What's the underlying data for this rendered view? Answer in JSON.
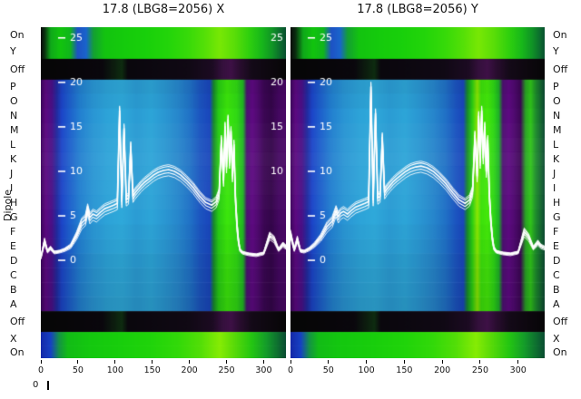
{
  "figure": {
    "dipole_label": "Dipole",
    "corner_label": "0",
    "rows": [
      {
        "label": "On",
        "band": "bright_top",
        "h": 18
      },
      {
        "label": "Y",
        "band": "bright_top",
        "h": 17
      },
      {
        "label": "Off",
        "band": "dark",
        "h": 23
      },
      {
        "label": "P",
        "band": "body",
        "h": 16
      },
      {
        "label": "O",
        "band": "body",
        "h": 16
      },
      {
        "label": "N",
        "band": "body",
        "h": 16
      },
      {
        "label": "M",
        "band": "body",
        "h": 16
      },
      {
        "label": "L",
        "band": "body",
        "h": 16
      },
      {
        "label": "K",
        "band": "body",
        "h": 16
      },
      {
        "label": "J",
        "band": "body",
        "h": 16
      },
      {
        "label": "I",
        "band": "body",
        "h": 16
      },
      {
        "label": "H",
        "band": "body",
        "h": 16
      },
      {
        "label": "G",
        "band": "body",
        "h": 16
      },
      {
        "label": "F",
        "band": "body",
        "h": 16
      },
      {
        "label": "E",
        "band": "body",
        "h": 16
      },
      {
        "label": "D",
        "band": "body",
        "h": 16
      },
      {
        "label": "C",
        "band": "body",
        "h": 16
      },
      {
        "label": "B",
        "band": "body",
        "h": 16
      },
      {
        "label": "A",
        "band": "body",
        "h": 16
      },
      {
        "label": "Off",
        "band": "dark",
        "h": 23
      },
      {
        "label": "X",
        "band": "bright_bottom",
        "h": 15
      },
      {
        "label": "On",
        "band": "bright_bottom",
        "h": 14
      }
    ]
  },
  "chart_data": [
    {
      "type": "heatmap",
      "title": "17.8 (LBG8=2056) X",
      "x_ticks": [
        0,
        50,
        100,
        150,
        200,
        250,
        300
      ],
      "x_range": [
        0,
        330
      ],
      "y_ticks": [
        25,
        20,
        15,
        10,
        5,
        0
      ],
      "right_y_ticks": [
        25,
        20,
        15,
        10
      ],
      "y_domain": [
        -11,
        26.2
      ],
      "legend": "white overlaid traces = loss profile; background heatmap = monitor intensity per dipole row",
      "gradients": {
        "bright_top": [
          [
            0.0,
            "#0b0b0b"
          ],
          [
            0.015,
            "#0a2e10"
          ],
          [
            0.04,
            "#0fa81a"
          ],
          [
            0.08,
            "#12c40e"
          ],
          [
            0.12,
            "#10b61c"
          ],
          [
            0.15,
            "#1e52c4"
          ],
          [
            0.185,
            "#1a64cc"
          ],
          [
            0.215,
            "#14a032"
          ],
          [
            0.26,
            "#13c310"
          ],
          [
            0.34,
            "#15cb0c"
          ],
          [
            0.43,
            "#19d00b"
          ],
          [
            0.52,
            "#23d50a"
          ],
          [
            0.6,
            "#37da09"
          ],
          [
            0.67,
            "#55e007"
          ],
          [
            0.73,
            "#78e805"
          ],
          [
            0.79,
            "#5ade08"
          ],
          [
            0.85,
            "#2fd00e"
          ],
          [
            0.9,
            "#18b81a"
          ],
          [
            0.945,
            "#109426"
          ],
          [
            0.975,
            "#0c6e2e"
          ],
          [
            1.0,
            "#0a5030"
          ]
        ],
        "dark": [
          [
            0.0,
            "#060606"
          ],
          [
            0.25,
            "#0a070d"
          ],
          [
            0.33,
            "#0e2c10"
          ],
          [
            0.355,
            "#0a070d"
          ],
          [
            0.6,
            "#100914"
          ],
          [
            0.7,
            "#1c0b22"
          ],
          [
            0.74,
            "#34103c"
          ],
          [
            0.775,
            "#3e1146"
          ],
          [
            0.81,
            "#2a0d30"
          ],
          [
            0.86,
            "#140a18"
          ],
          [
            1.0,
            "#070607"
          ]
        ],
        "body": [
          [
            0.0,
            "#3f0660"
          ],
          [
            0.02,
            "#5c0a80"
          ],
          [
            0.045,
            "#4a1188"
          ],
          [
            0.065,
            "#232a9e"
          ],
          [
            0.085,
            "#1c45c8"
          ],
          [
            0.12,
            "#1e62cc"
          ],
          [
            0.16,
            "#2380d0"
          ],
          [
            0.21,
            "#2a95d4"
          ],
          [
            0.27,
            "#2da3d8"
          ],
          [
            0.33,
            "#2fa9da"
          ],
          [
            0.39,
            "#2b9cd4"
          ],
          [
            0.45,
            "#2da5d8"
          ],
          [
            0.51,
            "#2a96d2"
          ],
          [
            0.56,
            "#2787cc"
          ],
          [
            0.61,
            "#2071c6"
          ],
          [
            0.65,
            "#1c55c0"
          ],
          [
            0.69,
            "#1a46bc"
          ],
          [
            0.705,
            "#18882e"
          ],
          [
            0.725,
            "#28cc14"
          ],
          [
            0.76,
            "#3ce60c"
          ],
          [
            0.8,
            "#30d814"
          ],
          [
            0.825,
            "#20b424"
          ],
          [
            0.84,
            "#4c1270"
          ],
          [
            0.862,
            "#5e0a82"
          ],
          [
            0.885,
            "#500a70"
          ],
          [
            0.91,
            "#3c0754"
          ],
          [
            0.94,
            "#34064a"
          ],
          [
            0.97,
            "#440860"
          ],
          [
            1.0,
            "#4a0866"
          ]
        ],
        "bright_bottom": [
          [
            0.0,
            "#1428a8"
          ],
          [
            0.04,
            "#1740c4"
          ],
          [
            0.075,
            "#149444"
          ],
          [
            0.11,
            "#12bc16"
          ],
          [
            0.2,
            "#14c80f"
          ],
          [
            0.32,
            "#18ce0c"
          ],
          [
            0.45,
            "#20d40a"
          ],
          [
            0.56,
            "#32d909"
          ],
          [
            0.65,
            "#52de07"
          ],
          [
            0.73,
            "#86ec04"
          ],
          [
            0.79,
            "#58da08"
          ],
          [
            0.86,
            "#24c612"
          ],
          [
            0.92,
            "#149c2a"
          ],
          [
            0.965,
            "#0e7030"
          ],
          [
            1.0,
            "#0a4c32"
          ]
        ]
      },
      "body_row_shade": [
        -0.06,
        -0.03,
        0.0,
        0.02,
        0.04,
        0.05,
        0.04,
        0.03,
        0.02,
        0.0,
        -0.02,
        -0.04,
        -0.07,
        -0.09,
        -0.1,
        -0.12
      ],
      "trace": {
        "x": [
          0,
          5,
          9,
          13,
          18,
          25,
          32,
          40,
          48,
          55,
          60,
          63,
          66,
          70,
          75,
          80,
          86,
          92,
          98,
          103,
          106,
          109,
          112,
          115,
          118,
          121,
          124,
          127,
          131,
          135,
          140,
          146,
          152,
          158,
          165,
          172,
          180,
          188,
          196,
          205,
          214,
          222,
          230,
          236,
          240,
          243,
          246,
          248,
          250,
          252,
          254,
          256,
          258,
          260,
          262,
          264,
          266,
          268,
          271,
          275,
          280,
          290,
          300,
          308,
          314,
          320,
          326,
          330
        ],
        "y": [
          0.3,
          2.2,
          1.0,
          1.4,
          0.9,
          1.0,
          1.2,
          1.6,
          2.8,
          4.2,
          4.6,
          5.8,
          4.8,
          5.2,
          5.0,
          5.4,
          5.8,
          6.0,
          6.2,
          6.4,
          16.8,
          6.6,
          14.8,
          6.8,
          7.0,
          12.8,
          7.2,
          7.6,
          8.0,
          8.4,
          8.8,
          9.2,
          9.6,
          9.9,
          10.1,
          10.2,
          10.0,
          9.6,
          9.0,
          8.2,
          7.2,
          6.5,
          6.2,
          6.6,
          7.5,
          13.5,
          9.0,
          15.0,
          10.5,
          15.8,
          11.0,
          14.5,
          9.5,
          13.0,
          7.0,
          4.0,
          2.2,
          1.2,
          0.9,
          0.8,
          0.7,
          0.6,
          0.8,
          2.8,
          2.4,
          1.2,
          1.8,
          1.5
        ]
      }
    },
    {
      "type": "heatmap",
      "title": "17.8 (LBG8=2056) Y",
      "x_ticks": [
        0,
        50,
        100,
        150,
        200,
        250,
        300
      ],
      "x_range": [
        0,
        335
      ],
      "y_ticks": [
        25,
        20,
        15,
        10,
        5,
        0
      ],
      "right_y_ticks": [],
      "y_domain": [
        -11,
        26.2
      ],
      "legend": "white overlaid traces = loss profile; background heatmap = monitor intensity per dipole row",
      "gradients": {
        "bright_top": [
          [
            0.0,
            "#0b0b0b"
          ],
          [
            0.02,
            "#0a2e10"
          ],
          [
            0.05,
            "#0fa81a"
          ],
          [
            0.09,
            "#12c40e"
          ],
          [
            0.13,
            "#10b61c"
          ],
          [
            0.16,
            "#1e52c4"
          ],
          [
            0.195,
            "#1a64cc"
          ],
          [
            0.225,
            "#14a032"
          ],
          [
            0.27,
            "#13c310"
          ],
          [
            0.35,
            "#15cb0c"
          ],
          [
            0.44,
            "#19d00b"
          ],
          [
            0.53,
            "#23d50a"
          ],
          [
            0.61,
            "#37da09"
          ],
          [
            0.68,
            "#55e007"
          ],
          [
            0.74,
            "#78e805"
          ],
          [
            0.8,
            "#5ade08"
          ],
          [
            0.86,
            "#2fd00e"
          ],
          [
            0.91,
            "#18b81a"
          ],
          [
            0.95,
            "#109426"
          ],
          [
            0.98,
            "#0c6e2e"
          ],
          [
            1.0,
            "#0a5030"
          ]
        ],
        "dark": [
          [
            0.0,
            "#060606"
          ],
          [
            0.25,
            "#0a070d"
          ],
          [
            0.33,
            "#0e2c10"
          ],
          [
            0.355,
            "#0a070d"
          ],
          [
            0.6,
            "#100914"
          ],
          [
            0.7,
            "#1c0b22"
          ],
          [
            0.74,
            "#34103c"
          ],
          [
            0.775,
            "#3e1146"
          ],
          [
            0.81,
            "#2a0d30"
          ],
          [
            0.86,
            "#140a18"
          ],
          [
            1.0,
            "#070607"
          ]
        ],
        "body": [
          [
            0.0,
            "#3f0660"
          ],
          [
            0.02,
            "#5c0a80"
          ],
          [
            0.045,
            "#4a1188"
          ],
          [
            0.065,
            "#232a9e"
          ],
          [
            0.085,
            "#1c45c8"
          ],
          [
            0.12,
            "#1e62cc"
          ],
          [
            0.16,
            "#2380d0"
          ],
          [
            0.21,
            "#2a95d4"
          ],
          [
            0.27,
            "#2da3d8"
          ],
          [
            0.33,
            "#2fa9da"
          ],
          [
            0.39,
            "#2b9cd4"
          ],
          [
            0.45,
            "#2da5d8"
          ],
          [
            0.51,
            "#2a96d2"
          ],
          [
            0.56,
            "#2787cc"
          ],
          [
            0.61,
            "#2071c6"
          ],
          [
            0.65,
            "#1c55c0"
          ],
          [
            0.68,
            "#1a46bc"
          ],
          [
            0.695,
            "#18882e"
          ],
          [
            0.715,
            "#2ace12"
          ],
          [
            0.735,
            "#8ae604"
          ],
          [
            0.75,
            "#3ce00c"
          ],
          [
            0.775,
            "#44e80a"
          ],
          [
            0.8,
            "#2ed616"
          ],
          [
            0.82,
            "#1eb026"
          ],
          [
            0.835,
            "#4c1270"
          ],
          [
            0.858,
            "#5e0a82"
          ],
          [
            0.88,
            "#500a70"
          ],
          [
            0.905,
            "#3c0754"
          ],
          [
            0.925,
            "#2aa424"
          ],
          [
            0.945,
            "#30c41a"
          ],
          [
            0.965,
            "#1e8c2c"
          ],
          [
            1.0,
            "#0e4a34"
          ]
        ],
        "bright_bottom": [
          [
            0.0,
            "#1428a8"
          ],
          [
            0.04,
            "#1740c4"
          ],
          [
            0.075,
            "#149444"
          ],
          [
            0.11,
            "#12bc16"
          ],
          [
            0.2,
            "#14c80f"
          ],
          [
            0.32,
            "#18ce0c"
          ],
          [
            0.45,
            "#20d40a"
          ],
          [
            0.56,
            "#32d909"
          ],
          [
            0.65,
            "#52de07"
          ],
          [
            0.73,
            "#86ec04"
          ],
          [
            0.79,
            "#58da08"
          ],
          [
            0.86,
            "#24c612"
          ],
          [
            0.92,
            "#149c2a"
          ],
          [
            0.965,
            "#0e7030"
          ],
          [
            1.0,
            "#0a4c32"
          ]
        ]
      },
      "body_row_shade": [
        -0.06,
        -0.03,
        0.0,
        0.02,
        0.04,
        0.05,
        0.04,
        0.03,
        0.02,
        0.0,
        -0.02,
        -0.04,
        -0.07,
        -0.09,
        -0.1,
        -0.12
      ],
      "trace": {
        "x": [
          0,
          5,
          9,
          13,
          18,
          25,
          32,
          40,
          48,
          55,
          60,
          63,
          66,
          70,
          75,
          80,
          86,
          92,
          98,
          103,
          106,
          109,
          112,
          115,
          118,
          121,
          124,
          127,
          131,
          135,
          140,
          146,
          152,
          158,
          165,
          172,
          180,
          188,
          196,
          205,
          214,
          222,
          230,
          236,
          240,
          243,
          246,
          248,
          250,
          252,
          254,
          256,
          258,
          260,
          262,
          264,
          266,
          268,
          271,
          275,
          280,
          290,
          300,
          308,
          314,
          320,
          326,
          330,
          335
        ],
        "y": [
          3.0,
          1.2,
          2.4,
          1.1,
          1.0,
          1.3,
          1.8,
          2.6,
          3.8,
          4.4,
          5.6,
          4.9,
          5.3,
          5.5,
          5.2,
          5.6,
          6.0,
          6.2,
          6.4,
          6.6,
          19.5,
          6.8,
          16.5,
          7.0,
          7.2,
          13.8,
          7.6,
          8.0,
          8.4,
          8.8,
          9.2,
          9.6,
          10.0,
          10.3,
          10.5,
          10.6,
          10.4,
          10.0,
          9.4,
          8.6,
          7.6,
          6.8,
          6.4,
          6.8,
          7.8,
          14.0,
          9.5,
          16.2,
          11.0,
          16.8,
          11.5,
          15.0,
          10.0,
          13.5,
          7.5,
          4.5,
          2.5,
          1.4,
          1.0,
          0.9,
          0.8,
          0.7,
          0.9,
          3.2,
          2.6,
          1.4,
          2.0,
          1.6,
          1.4
        ]
      }
    }
  ]
}
